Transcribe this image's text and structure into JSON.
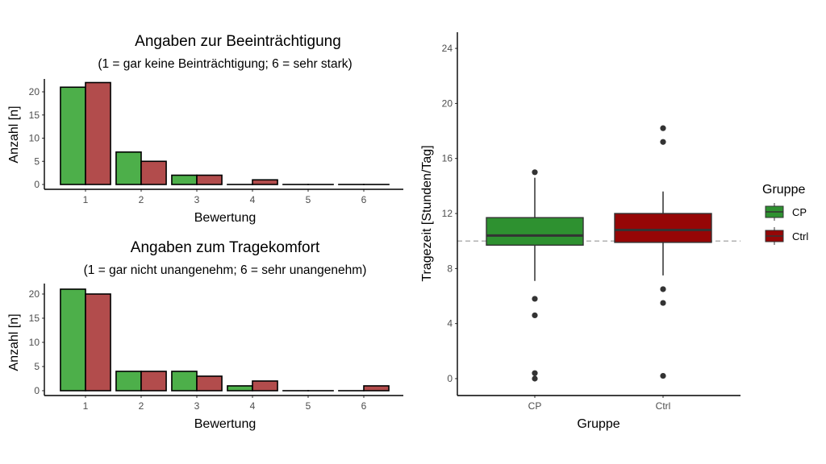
{
  "colors": {
    "cp_bar": "#4daf4a",
    "ctrl_bar": "#b24c4c",
    "cp_box": "#2e9130",
    "ctrl_box": "#960606",
    "refline": "#999999"
  },
  "chart_data": [
    {
      "type": "bar",
      "title": "Angaben zur Beeinträchtigung",
      "subtitle": "(1 = gar keine Beinträchtigung; 6 = sehr stark)",
      "xlabel": "Bewertung",
      "ylabel": "Anzahl [n]",
      "categories": [
        "1",
        "2",
        "3",
        "4",
        "5",
        "6"
      ],
      "yticks": [
        0,
        5,
        10,
        15,
        20
      ],
      "ylim": [
        0,
        23
      ],
      "series": [
        {
          "name": "CP",
          "values": [
            21,
            7,
            2,
            0,
            0,
            0
          ]
        },
        {
          "name": "Ctrl",
          "values": [
            22,
            5,
            2,
            1,
            0,
            0
          ]
        }
      ]
    },
    {
      "type": "bar",
      "title": "Angaben zum Tragekomfort",
      "subtitle": "(1 = gar nicht unangenehm; 6 = sehr unangenehm)",
      "xlabel": "Bewertung",
      "ylabel": "Anzahl [n]",
      "categories": [
        "1",
        "2",
        "3",
        "4",
        "5",
        "6"
      ],
      "yticks": [
        0,
        5,
        10,
        15,
        20
      ],
      "ylim": [
        0,
        22
      ],
      "series": [
        {
          "name": "CP",
          "values": [
            21,
            4,
            4,
            1,
            0,
            0
          ]
        },
        {
          "name": "Ctrl",
          "values": [
            20,
            4,
            3,
            2,
            0,
            1
          ]
        }
      ]
    },
    {
      "type": "box",
      "xlabel": "Gruppe",
      "ylabel": "Tragezeit [Stunden/Tag]",
      "categories": [
        "CP",
        "Ctrl"
      ],
      "yticks": [
        0,
        4,
        8,
        12,
        16,
        20,
        24
      ],
      "ylim": [
        -1,
        25.5
      ],
      "reference_line": 10,
      "legend": {
        "title": "Gruppe",
        "entries": [
          "CP",
          "Ctrl"
        ],
        "placement": "right"
      },
      "boxes": [
        {
          "name": "CP",
          "whisker_low": 7.1,
          "q1": 9.7,
          "median": 10.4,
          "q3": 11.7,
          "whisker_high": 14.6,
          "outliers": [
            15.0,
            5.8,
            4.6,
            0.4,
            0.0
          ]
        },
        {
          "name": "Ctrl",
          "whisker_low": 7.5,
          "q1": 9.9,
          "median": 10.8,
          "q3": 12.0,
          "whisker_high": 13.6,
          "outliers": [
            18.2,
            17.2,
            6.5,
            5.5,
            0.2
          ]
        }
      ]
    }
  ]
}
